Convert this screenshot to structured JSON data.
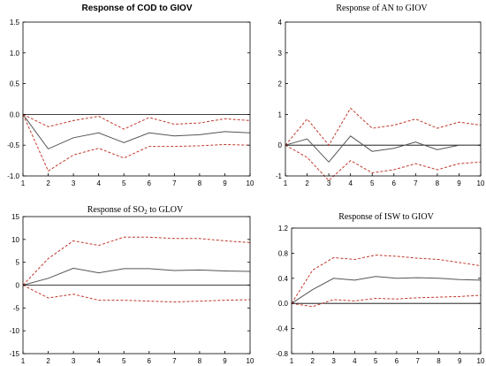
{
  "chart_data": [
    {
      "type": "line",
      "title": "Response of COD to GIOV",
      "x": [
        1,
        2,
        3,
        4,
        5,
        6,
        7,
        8,
        9,
        10
      ],
      "xlim": [
        1,
        10
      ],
      "ylim": [
        -1.0,
        1.5
      ],
      "yticks": [
        "1.5",
        "1.0",
        "0.5",
        "0.0",
        "-0.5",
        "-1.0"
      ],
      "series": [
        {
          "values": [
            0.0,
            -0.56,
            -0.38,
            -0.3,
            -0.46,
            -0.3,
            -0.35,
            -0.33,
            -0.28,
            -0.3
          ]
        },
        {
          "values": [
            0.0,
            -0.2,
            -0.1,
            -0.03,
            -0.24,
            -0.05,
            -0.16,
            -0.14,
            -0.07,
            -0.1
          ]
        },
        {
          "values": [
            0.0,
            -0.92,
            -0.66,
            -0.55,
            -0.71,
            -0.52,
            -0.52,
            -0.51,
            -0.49,
            -0.5
          ]
        }
      ]
    },
    {
      "type": "line",
      "title": "Response of AN to GIOV",
      "x": [
        1,
        2,
        3,
        4,
        5,
        6,
        7,
        8,
        9,
        10
      ],
      "xlim": [
        1,
        10
      ],
      "ylim": [
        -1,
        4
      ],
      "yticks": [
        "4",
        "3",
        "2",
        "1",
        "0",
        "-1"
      ],
      "series": [
        {
          "values": [
            0.0,
            0.2,
            -0.55,
            0.3,
            -0.2,
            -0.1,
            0.1,
            -0.15,
            0.0,
            0.0
          ]
        },
        {
          "values": [
            0.0,
            0.85,
            0.0,
            1.2,
            0.55,
            0.65,
            0.85,
            0.55,
            0.75,
            0.65
          ]
        },
        {
          "values": [
            0.0,
            -0.4,
            -1.15,
            -0.5,
            -0.9,
            -0.8,
            -0.6,
            -0.8,
            -0.6,
            -0.55
          ]
        }
      ]
    },
    {
      "type": "line",
      "title_pre": "Response of SO",
      "title_sub": "2",
      "title_post": " to GLOV",
      "x": [
        1,
        2,
        3,
        4,
        5,
        6,
        7,
        8,
        9,
        10
      ],
      "xlim": [
        1,
        10
      ],
      "ylim": [
        -15,
        15
      ],
      "yticks": [
        "15",
        "10",
        "5",
        "0",
        "-5",
        "-10",
        "-15"
      ],
      "series": [
        {
          "values": [
            0.0,
            1.5,
            3.7,
            2.7,
            3.6,
            3.6,
            3.2,
            3.3,
            3.1,
            3.0
          ]
        },
        {
          "values": [
            0.0,
            5.8,
            9.7,
            8.7,
            10.5,
            10.5,
            10.2,
            10.2,
            9.7,
            9.3
          ]
        },
        {
          "values": [
            0.0,
            -2.8,
            -2.0,
            -3.3,
            -3.3,
            -3.5,
            -3.7,
            -3.5,
            -3.3,
            -3.2
          ]
        }
      ]
    },
    {
      "type": "line",
      "title": "Response of ISW to GIOV",
      "x": [
        1,
        2,
        3,
        4,
        5,
        6,
        7,
        8,
        9,
        10
      ],
      "xlim": [
        1,
        10
      ],
      "ylim": [
        -0.8,
        1.2
      ],
      "yticks": [
        "1.2",
        "0.8",
        "0.4",
        "0.0",
        "-0.4",
        "-0.8"
      ],
      "series": [
        {
          "values": [
            0.0,
            0.22,
            0.4,
            0.37,
            0.43,
            0.4,
            0.41,
            0.4,
            0.38,
            0.37
          ]
        },
        {
          "values": [
            0.0,
            0.53,
            0.73,
            0.7,
            0.77,
            0.75,
            0.72,
            0.7,
            0.65,
            0.6
          ]
        },
        {
          "values": [
            0.0,
            -0.05,
            0.06,
            0.04,
            0.08,
            0.07,
            0.09,
            0.1,
            0.11,
            0.13
          ]
        }
      ]
    }
  ]
}
